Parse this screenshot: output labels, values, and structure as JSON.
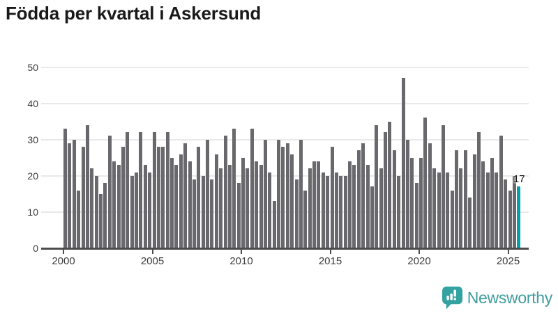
{
  "title": "Födda per kvartal i Askersund",
  "chart_data": {
    "type": "bar",
    "title": "Födda per kvartal i Askersund",
    "ylabel": "",
    "xlabel": "",
    "ylim": [
      0,
      50
    ],
    "yticks": [
      "0",
      "10",
      "20",
      "30",
      "40",
      "50"
    ],
    "xtick_labels": [
      "2000",
      "2005",
      "2010",
      "2015",
      "2020",
      "2025"
    ],
    "grid": "horizontal",
    "legend": "none",
    "bar_color": "#69696d",
    "highlight_color": "#00a3ab",
    "highlight_index": 102,
    "annotation": {
      "text": "17",
      "index": 102
    },
    "categories": [
      "2000 Q1",
      "2000 Q2",
      "2000 Q3",
      "2000 Q4",
      "2001 Q1",
      "2001 Q2",
      "2001 Q3",
      "2001 Q4",
      "2002 Q1",
      "2002 Q2",
      "2002 Q3",
      "2002 Q4",
      "2003 Q1",
      "2003 Q2",
      "2003 Q3",
      "2003 Q4",
      "2004 Q1",
      "2004 Q2",
      "2004 Q3",
      "2004 Q4",
      "2005 Q1",
      "2005 Q2",
      "2005 Q3",
      "2005 Q4",
      "2006 Q1",
      "2006 Q2",
      "2006 Q3",
      "2006 Q4",
      "2007 Q1",
      "2007 Q2",
      "2007 Q3",
      "2007 Q4",
      "2008 Q1",
      "2008 Q2",
      "2008 Q3",
      "2008 Q4",
      "2009 Q1",
      "2009 Q2",
      "2009 Q3",
      "2009 Q4",
      "2010 Q1",
      "2010 Q2",
      "2010 Q3",
      "2010 Q4",
      "2011 Q1",
      "2011 Q2",
      "2011 Q3",
      "2011 Q4",
      "2012 Q1",
      "2012 Q2",
      "2012 Q3",
      "2012 Q4",
      "2013 Q1",
      "2013 Q2",
      "2013 Q3",
      "2013 Q4",
      "2014 Q1",
      "2014 Q2",
      "2014 Q3",
      "2014 Q4",
      "2015 Q1",
      "2015 Q2",
      "2015 Q3",
      "2015 Q4",
      "2016 Q1",
      "2016 Q2",
      "2016 Q3",
      "2016 Q4",
      "2017 Q1",
      "2017 Q2",
      "2017 Q3",
      "2017 Q4",
      "2018 Q1",
      "2018 Q2",
      "2018 Q3",
      "2018 Q4",
      "2019 Q1",
      "2019 Q2",
      "2019 Q3",
      "2019 Q4",
      "2020 Q1",
      "2020 Q2",
      "2020 Q3",
      "2020 Q4",
      "2021 Q1",
      "2021 Q2",
      "2021 Q3",
      "2021 Q4",
      "2022 Q1",
      "2022 Q2",
      "2022 Q3",
      "2022 Q4",
      "2023 Q1",
      "2023 Q2",
      "2023 Q3",
      "2023 Q4",
      "2024 Q1",
      "2024 Q2",
      "2024 Q3",
      "2024 Q4",
      "2025 Q1",
      "2025 Q2",
      "2025 Q3"
    ],
    "values": [
      33,
      29,
      30,
      16,
      28,
      34,
      22,
      20,
      15,
      18,
      31,
      24,
      23,
      28,
      32,
      20,
      21,
      32,
      23,
      21,
      32,
      28,
      28,
      32,
      25,
      23,
      26,
      29,
      24,
      19,
      28,
      20,
      30,
      19,
      26,
      22,
      31,
      23,
      33,
      18,
      25,
      22,
      33,
      24,
      23,
      30,
      21,
      13,
      30,
      28,
      29,
      26,
      19,
      30,
      16,
      22,
      24,
      24,
      21,
      20,
      28,
      21,
      20,
      20,
      24,
      23,
      27,
      29,
      23,
      17,
      34,
      22,
      32,
      35,
      27,
      20,
      47,
      30,
      25,
      18,
      25,
      36,
      29,
      22,
      21,
      34,
      21,
      16,
      27,
      22,
      27,
      14,
      26,
      32,
      24,
      21,
      25,
      21,
      31,
      19,
      16,
      20,
      17
    ]
  },
  "logo": {
    "text": "Newsworthy",
    "icon": "newsworthy-speech-bubble-chart-icon",
    "icon_color": "#35a2a2",
    "text_color": "#3f9d9d"
  }
}
